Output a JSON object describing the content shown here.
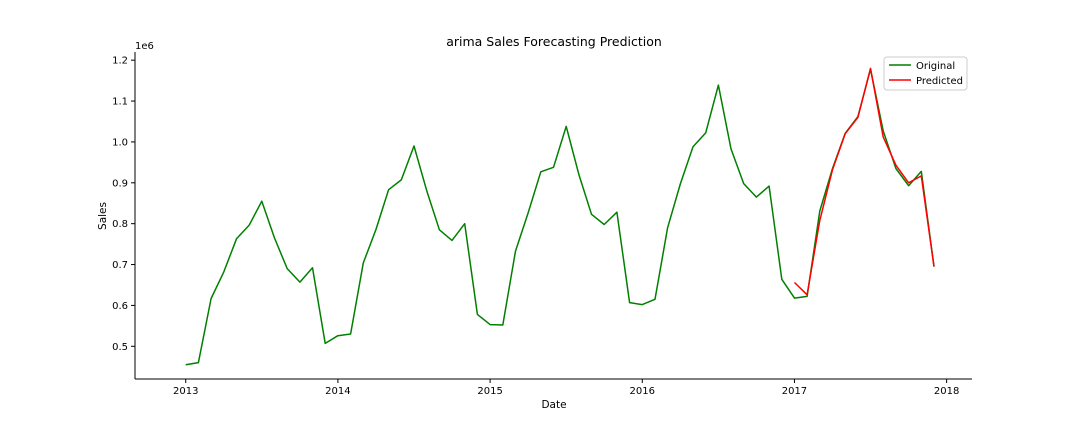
{
  "chart_data": {
    "type": "line",
    "title": "arima Sales Forecasting Prediction",
    "xlabel": "Date",
    "ylabel": "Sales",
    "y_multiplier_label": "1e6",
    "x_ticks": [
      "2013",
      "2014",
      "2015",
      "2016",
      "2017",
      "2018"
    ],
    "y_ticks": [
      "0.5",
      "0.6",
      "0.7",
      "0.8",
      "0.9",
      "1.0",
      "1.1",
      "1.2"
    ],
    "xlim": [
      "2012-09",
      "2018-03"
    ],
    "ylim": [
      0.42,
      1.22
    ],
    "grid": false,
    "legend_position": "top-right",
    "series": [
      {
        "name": "Original",
        "color": "#008000",
        "x": [
          "2013-01",
          "2013-02",
          "2013-03",
          "2013-04",
          "2013-05",
          "2013-06",
          "2013-07",
          "2013-08",
          "2013-09",
          "2013-10",
          "2013-11",
          "2013-12",
          "2014-01",
          "2014-02",
          "2014-03",
          "2014-04",
          "2014-05",
          "2014-06",
          "2014-07",
          "2014-08",
          "2014-09",
          "2014-10",
          "2014-11",
          "2014-12",
          "2015-01",
          "2015-02",
          "2015-03",
          "2015-04",
          "2015-05",
          "2015-06",
          "2015-07",
          "2015-08",
          "2015-09",
          "2015-10",
          "2015-11",
          "2015-12",
          "2016-01",
          "2016-02",
          "2016-03",
          "2016-04",
          "2016-05",
          "2016-06",
          "2016-07",
          "2016-08",
          "2016-09",
          "2016-10",
          "2016-11",
          "2016-12",
          "2017-01",
          "2017-02",
          "2017-03",
          "2017-04",
          "2017-05",
          "2017-06",
          "2017-07",
          "2017-08",
          "2017-09",
          "2017-10",
          "2017-11",
          "2017-12"
        ],
        "values": [
          0.455,
          0.46,
          0.617,
          0.682,
          0.763,
          0.796,
          0.855,
          0.765,
          0.69,
          0.657,
          0.692,
          0.507,
          0.526,
          0.53,
          0.704,
          0.786,
          0.883,
          0.907,
          0.99,
          0.881,
          0.785,
          0.759,
          0.8,
          0.578,
          0.553,
          0.552,
          0.733,
          0.826,
          0.927,
          0.938,
          1.038,
          0.92,
          0.823,
          0.798,
          0.828,
          0.607,
          0.602,
          0.615,
          0.79,
          0.897,
          0.988,
          1.022,
          1.139,
          0.983,
          0.898,
          0.865,
          0.892,
          0.664,
          0.618,
          0.622,
          0.831,
          0.935,
          1.021,
          1.062,
          1.178,
          1.027,
          0.935,
          0.893,
          0.928,
          0.695
        ]
      },
      {
        "name": "Predicted",
        "color": "#ff0000",
        "x": [
          "2017-01",
          "2017-02",
          "2017-03",
          "2017-04",
          "2017-05",
          "2017-06",
          "2017-07",
          "2017-08",
          "2017-09",
          "2017-10",
          "2017-11",
          "2017-12"
        ],
        "values": [
          0.656,
          0.626,
          0.808,
          0.932,
          1.02,
          1.06,
          1.18,
          1.012,
          0.943,
          0.9,
          0.917,
          0.695
        ]
      }
    ]
  }
}
